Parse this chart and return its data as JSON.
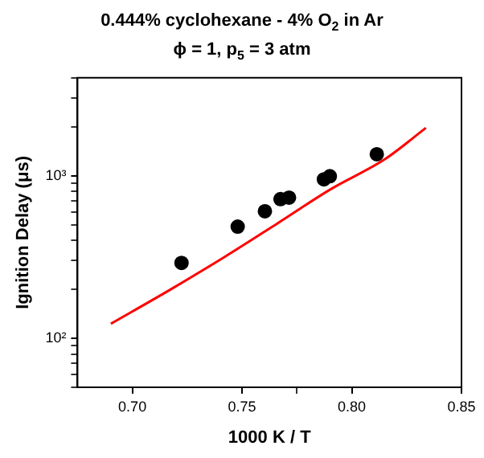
{
  "chart_data": {
    "type": "scatter",
    "title": "0.444% cyclohexane - 4% O$_{2}$ in Ar",
    "subtitle": "ϕ = 1, p$_{5}$ = 3 atm",
    "xlabel": "1000 K / T",
    "ylabel": "Ignition Delay (μs)",
    "log": "y",
    "grid": false,
    "legend": false,
    "marker": "circle",
    "xlim": [
      0.675,
      0.85
    ],
    "xticks": [
      {
        "value": 0.7,
        "label": "0.70"
      },
      {
        "value": 0.75,
        "label": "0.75"
      },
      {
        "value": 0.775,
        "label": null
      },
      {
        "value": 0.8,
        "label": "0.80"
      },
      {
        "value": 0.85,
        "label": "0.85"
      }
    ],
    "ylim": [
      50,
      4000
    ],
    "yticks": [
      {
        "value": 50,
        "label": null
      },
      {
        "value": 60,
        "label": null
      },
      {
        "value": 70,
        "label": null
      },
      {
        "value": 80,
        "label": null
      },
      {
        "value": 90,
        "label": null
      },
      {
        "value": 100,
        "label": "10²"
      },
      {
        "value": 200,
        "label": null
      },
      {
        "value": 300,
        "label": null
      },
      {
        "value": 400,
        "label": null
      },
      {
        "value": 500,
        "label": null
      },
      {
        "value": 600,
        "label": null
      },
      {
        "value": 700,
        "label": null
      },
      {
        "value": 800,
        "label": null
      },
      {
        "value": 900,
        "label": null
      },
      {
        "value": 1000,
        "label": "10³"
      },
      {
        "value": 2000,
        "label": null
      },
      {
        "value": 3000,
        "label": null
      },
      {
        "value": 4000,
        "label": null
      }
    ],
    "series": [
      {
        "color": "#000000",
        "x": [
          0.7224,
          0.748,
          0.7604,
          0.7675,
          0.7714,
          0.7873,
          0.79,
          0.8114
        ],
        "values": [
          291,
          486,
          604,
          718,
          733,
          950,
          993,
          1355
        ]
      },
      {
        "type": "line",
        "color": "#ff0000",
        "marker": "none",
        "x": [
          0.6902,
          0.7175,
          0.7419,
          0.7663,
          0.7906,
          0.815,
          0.8338
        ],
        "values": [
          123,
          200,
          316,
          511,
          829,
          1260,
          1968
        ]
      }
    ]
  }
}
